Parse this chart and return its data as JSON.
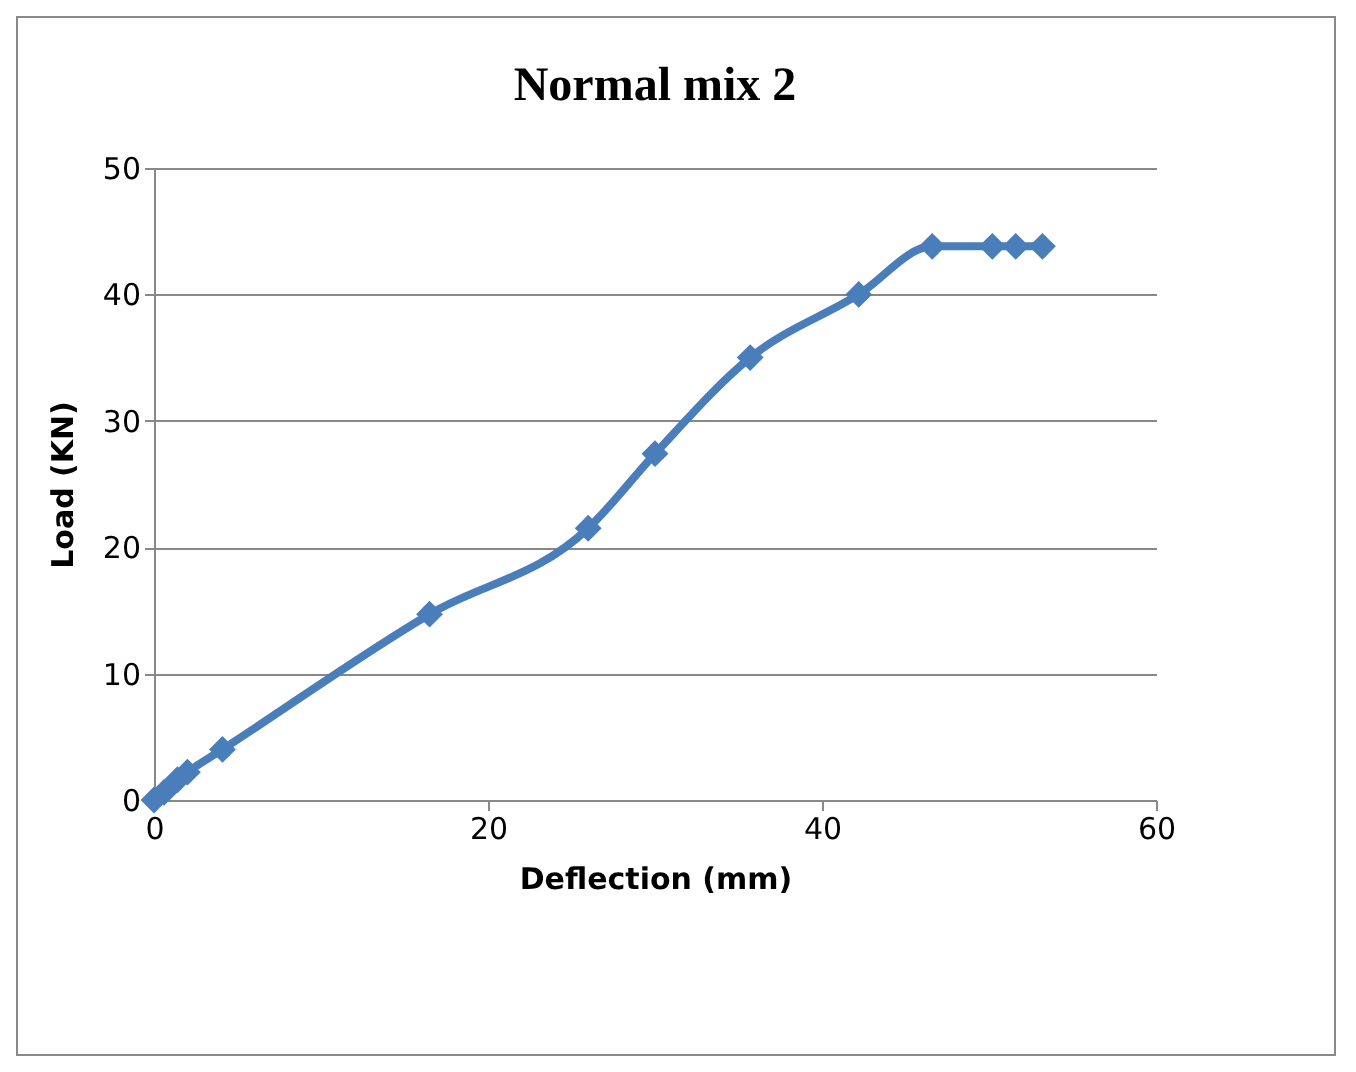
{
  "chart_data": {
    "type": "line",
    "title": "Normal mix 2",
    "xlabel": "Deflection (mm)",
    "ylabel": "Load  (KN)",
    "x": [
      0,
      0.6,
      1.4,
      2,
      4.1,
      16.5,
      26,
      30,
      35.7,
      42.2,
      46.6,
      50.2,
      51.6,
      53.2
    ],
    "series": [
      {
        "color": "#4a7ebb",
        "values": [
          0,
          0.6,
          1.6,
          2.2,
          4,
          14.7,
          21.5,
          27.4,
          35,
          40,
          43.8,
          43.8,
          43.8,
          43.8
        ]
      }
    ],
    "xlim": [
      0,
      60
    ],
    "xticks": [
      0,
      20,
      40,
      60
    ],
    "ylim": [
      0,
      50
    ],
    "yticks": [
      0,
      10,
      20,
      30,
      40,
      50
    ],
    "grid": "y",
    "legend": false,
    "marker": "diamond",
    "line_style": "solid"
  }
}
